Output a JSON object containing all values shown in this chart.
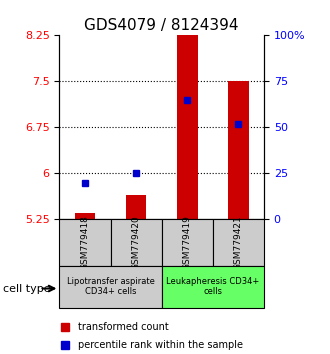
{
  "title": "GDS4079 / 8124394",
  "samples": [
    "GSM779418",
    "GSM779420",
    "GSM779419",
    "GSM779421"
  ],
  "transformed_counts": [
    5.35,
    5.65,
    8.6,
    7.5
  ],
  "percentile_ranks": [
    20,
    25,
    65,
    52
  ],
  "ylim_left": [
    5.25,
    8.25
  ],
  "ylim_right": [
    0,
    100
  ],
  "yticks_left": [
    5.25,
    6.0,
    6.75,
    7.5,
    8.25
  ],
  "ytick_labels_left": [
    "5.25",
    "6",
    "6.75",
    "7.5",
    "8.25"
  ],
  "yticks_right": [
    0,
    25,
    50,
    75,
    100
  ],
  "ytick_labels_right": [
    "0",
    "25",
    "50",
    "75",
    "100%"
  ],
  "dotted_lines": [
    6.0,
    6.75,
    7.5
  ],
  "bar_color": "#cc0000",
  "dot_color": "#0000cc",
  "bar_bottom": 5.25,
  "bar_width": 0.4,
  "group1_samples": [
    "GSM779418",
    "GSM779420"
  ],
  "group2_samples": [
    "GSM779419",
    "GSM779421"
  ],
  "group1_label": "Lipotransfer aspirate\nCD34+ cells",
  "group2_label": "Leukapheresis CD34+\ncells",
  "group1_color": "#cccccc",
  "group2_color": "#66ff66",
  "cell_type_label": "cell type",
  "legend_bar_label": "transformed count",
  "legend_dot_label": "percentile rank within the sample",
  "title_fontsize": 11,
  "tick_fontsize": 8,
  "label_fontsize": 8
}
